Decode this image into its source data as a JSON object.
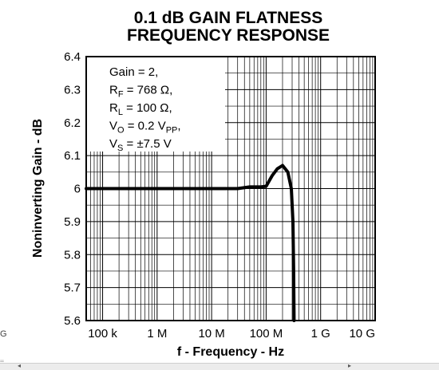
{
  "chart_data": {
    "type": "line",
    "title_lines": [
      "0.1 dB GAIN FLATNESS",
      "FREQUENCY RESPONSE"
    ],
    "xlabel": "f - Frequency - Hz",
    "ylabel": "Noninverting Gain - dB",
    "x_scale": "log",
    "xlim": [
      50000,
      10000000000
    ],
    "ylim": [
      5.6,
      6.4
    ],
    "x_ticks": [
      {
        "value": 100000,
        "label": "100 k"
      },
      {
        "value": 1000000,
        "label": "1 M"
      },
      {
        "value": 10000000,
        "label": "10 M"
      },
      {
        "value": 100000000,
        "label": "100 M"
      },
      {
        "value": 1000000000,
        "label": "1 G"
      },
      {
        "value": 10000000000,
        "label": "10 G"
      }
    ],
    "y_ticks": [
      {
        "value": 6.4,
        "label": "6.4"
      },
      {
        "value": 6.3,
        "label": "6.3"
      },
      {
        "value": 6.2,
        "label": "6.2"
      },
      {
        "value": 6.1,
        "label": "6.1"
      },
      {
        "value": 6.0,
        "label": "6"
      },
      {
        "value": 5.9,
        "label": "5.9"
      },
      {
        "value": 5.8,
        "label": "5.8"
      },
      {
        "value": 5.7,
        "label": "5.7"
      },
      {
        "value": 5.6,
        "label": "5.6"
      }
    ],
    "grid": true,
    "series": [
      {
        "x": [
          50000,
          100000,
          1000000,
          10000000,
          30000000,
          50000000,
          80000000,
          100000000,
          130000000,
          160000000,
          200000000,
          250000000,
          290000000,
          310000000,
          320000000,
          325000000
        ],
        "y": [
          6.0,
          6.0,
          6.0,
          6.0,
          6.0,
          6.005,
          6.005,
          6.007,
          6.04,
          6.06,
          6.07,
          6.05,
          6.0,
          5.9,
          5.75,
          5.6
        ]
      }
    ],
    "annotation": [
      {
        "parts": [
          {
            "text": "Gain = 2,",
            "sub": false
          }
        ]
      },
      {
        "parts": [
          {
            "text": "R",
            "sub": false
          },
          {
            "text": "F",
            "sub": true
          },
          {
            "text": " = 768 Ω,",
            "sub": false
          }
        ]
      },
      {
        "parts": [
          {
            "text": "R",
            "sub": false
          },
          {
            "text": "L",
            "sub": true
          },
          {
            "text": " = 100 Ω,",
            "sub": false
          }
        ]
      },
      {
        "parts": [
          {
            "text": "V",
            "sub": false
          },
          {
            "text": "O",
            "sub": true
          },
          {
            "text": " = 0.2 V",
            "sub": false
          },
          {
            "text": "PP",
            "sub": true
          },
          {
            "text": ",",
            "sub": false
          }
        ]
      },
      {
        "parts": [
          {
            "text": "V",
            "sub": false
          },
          {
            "text": "S",
            "sub": true
          },
          {
            "text": " = ±7.5 V",
            "sub": false
          }
        ]
      }
    ]
  },
  "page": {
    "edge_left_label": "G",
    "scroll_marker": "⁞⁞"
  }
}
